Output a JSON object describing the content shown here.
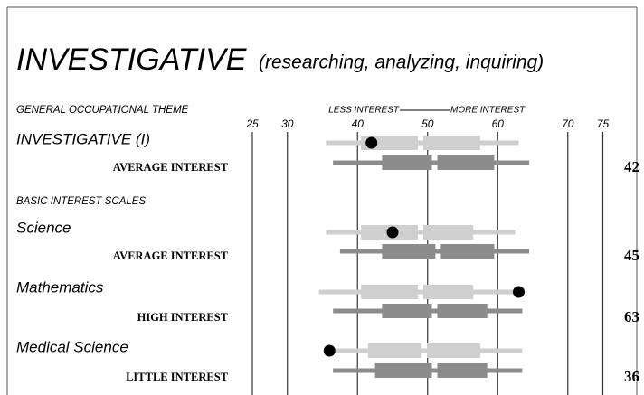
{
  "chart_data": {
    "type": "profile",
    "title": "INVESTIGATIVE",
    "subtitle": "(researching, analyzing, inquiring)",
    "theme_heading": "GENERAL OCCUPATIONAL THEME",
    "axis_label_left": "LESS INTEREST",
    "axis_label_right": "MORE INTEREST",
    "basic_heading": "BASIC INTEREST SCALES",
    "xlim": [
      25,
      75
    ],
    "xticks": [
      25,
      30,
      40,
      50,
      60,
      70,
      75
    ],
    "colors": {
      "light": "#cfcfcf",
      "dark": "#8c8c8c",
      "dot": "#000000"
    },
    "scales": [
      {
        "name": "INVESTIGATIVE (I)",
        "level": "AVERAGE INTEREST",
        "score": 42,
        "light": [
          35.5,
          40.5,
          49,
          57.5,
          63
        ],
        "dark": [
          36.5,
          43.5,
          51,
          59.5,
          64.5
        ]
      },
      {
        "name": "Science",
        "level": "AVERAGE INTEREST",
        "score": 45,
        "light": [
          35.5,
          40.5,
          49,
          56.5,
          62.5
        ],
        "dark": [
          37.5,
          43.5,
          51.5,
          59.5,
          64.5
        ]
      },
      {
        "name": "Mathematics",
        "level": "HIGH INTEREST",
        "score": 63,
        "light": [
          34.5,
          40.5,
          49,
          56.5,
          63
        ],
        "dark": [
          36.5,
          43.5,
          51,
          58.5,
          63.5
        ]
      },
      {
        "name": "Medical Science",
        "level": "LITTLE INTEREST",
        "score": 36,
        "light": [
          36.5,
          41.5,
          49.5,
          57.5,
          63.5
        ],
        "dark": [
          36.5,
          42.5,
          51,
          58.5,
          63.5
        ]
      }
    ]
  }
}
